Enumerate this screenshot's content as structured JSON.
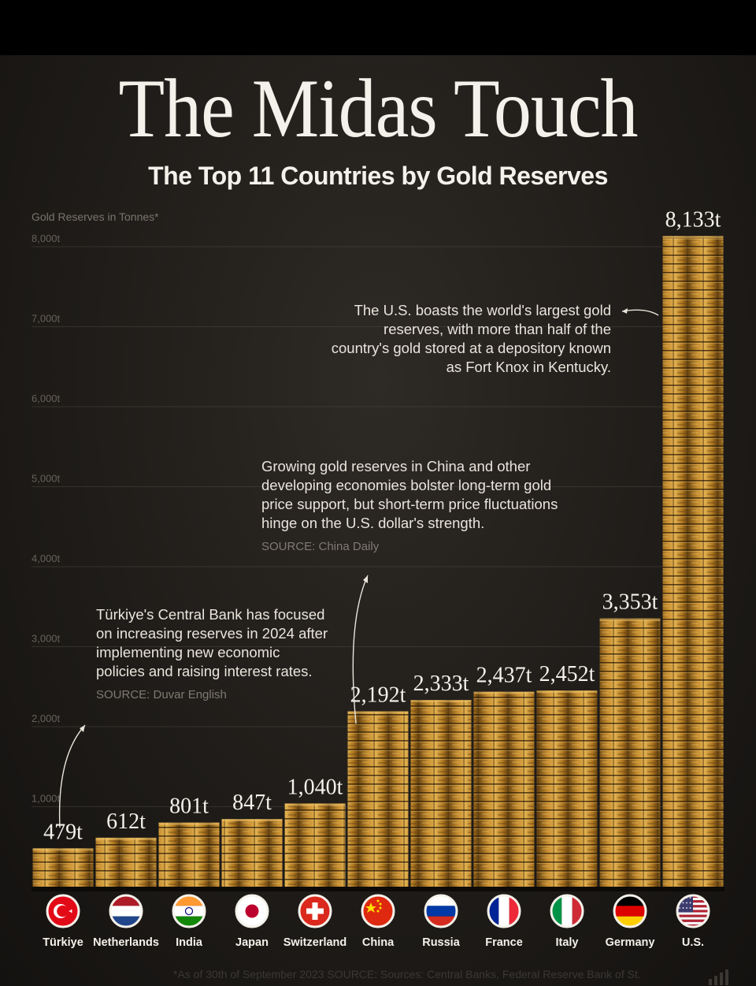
{
  "title": "The Midas Touch",
  "subtitle": "The Top 11 Countries by Gold Reserves",
  "annotations": {
    "us": {
      "text": "The U.S. boasts the world's largest gold reserves, with more than half of the country's gold stored at a depository known as Fort Knox in Kentucky."
    },
    "china": {
      "text": "Growing gold reserves in China and other developing economies bolster long-term gold price support, but short-term price fluctuations hinge on the U.S. dollar's strength.",
      "source": "SOURCE: China Daily"
    },
    "turkiye": {
      "text": "Türkiye's Central Bank has focused on increasing reserves in 2024 after implementing new economic policies and raising interest rates.",
      "source": "SOURCE: Duvar English"
    }
  },
  "footnote": "*As of 30th of September 2023 SOURCE: Sources: Central Banks, Federal Reserve Bank of St.",
  "colors": {
    "background": "#1f1c19",
    "gold_light": "#d9a441",
    "gold_dark": "#6e4a14",
    "text": "#f4f1ea",
    "muted": "#7a746c"
  },
  "chart_data": {
    "type": "bar",
    "title": "The Midas Touch",
    "subtitle": "The Top 11 Countries by Gold Reserves",
    "ylabel": "Gold Reserves in Tonnes*",
    "xlabel": "",
    "ylim": [
      0,
      8000
    ],
    "yticks": [
      "1,000t",
      "2,000t",
      "3,000t",
      "4,000t",
      "5,000t",
      "6,000t",
      "7,000t",
      "8,000t"
    ],
    "grid": true,
    "categories": [
      "Türkiye",
      "Netherlands",
      "India",
      "Japan",
      "Switzerland",
      "China",
      "Russia",
      "France",
      "Italy",
      "Germany",
      "U.S."
    ],
    "values": [
      479,
      612,
      801,
      847,
      1040,
      2192,
      2333,
      2437,
      2452,
      3353,
      8133
    ],
    "value_labels": [
      "479t",
      "612t",
      "801t",
      "847t",
      "1,040t",
      "2,192t",
      "2,333t",
      "2,437t",
      "2,452t",
      "3,353t",
      "8,133t"
    ],
    "flag_icons": [
      "turkiye-flag-icon",
      "netherlands-flag-icon",
      "india-flag-icon",
      "japan-flag-icon",
      "switzerland-flag-icon",
      "china-flag-icon",
      "russia-flag-icon",
      "france-flag-icon",
      "italy-flag-icon",
      "germany-flag-icon",
      "us-flag-icon"
    ]
  }
}
